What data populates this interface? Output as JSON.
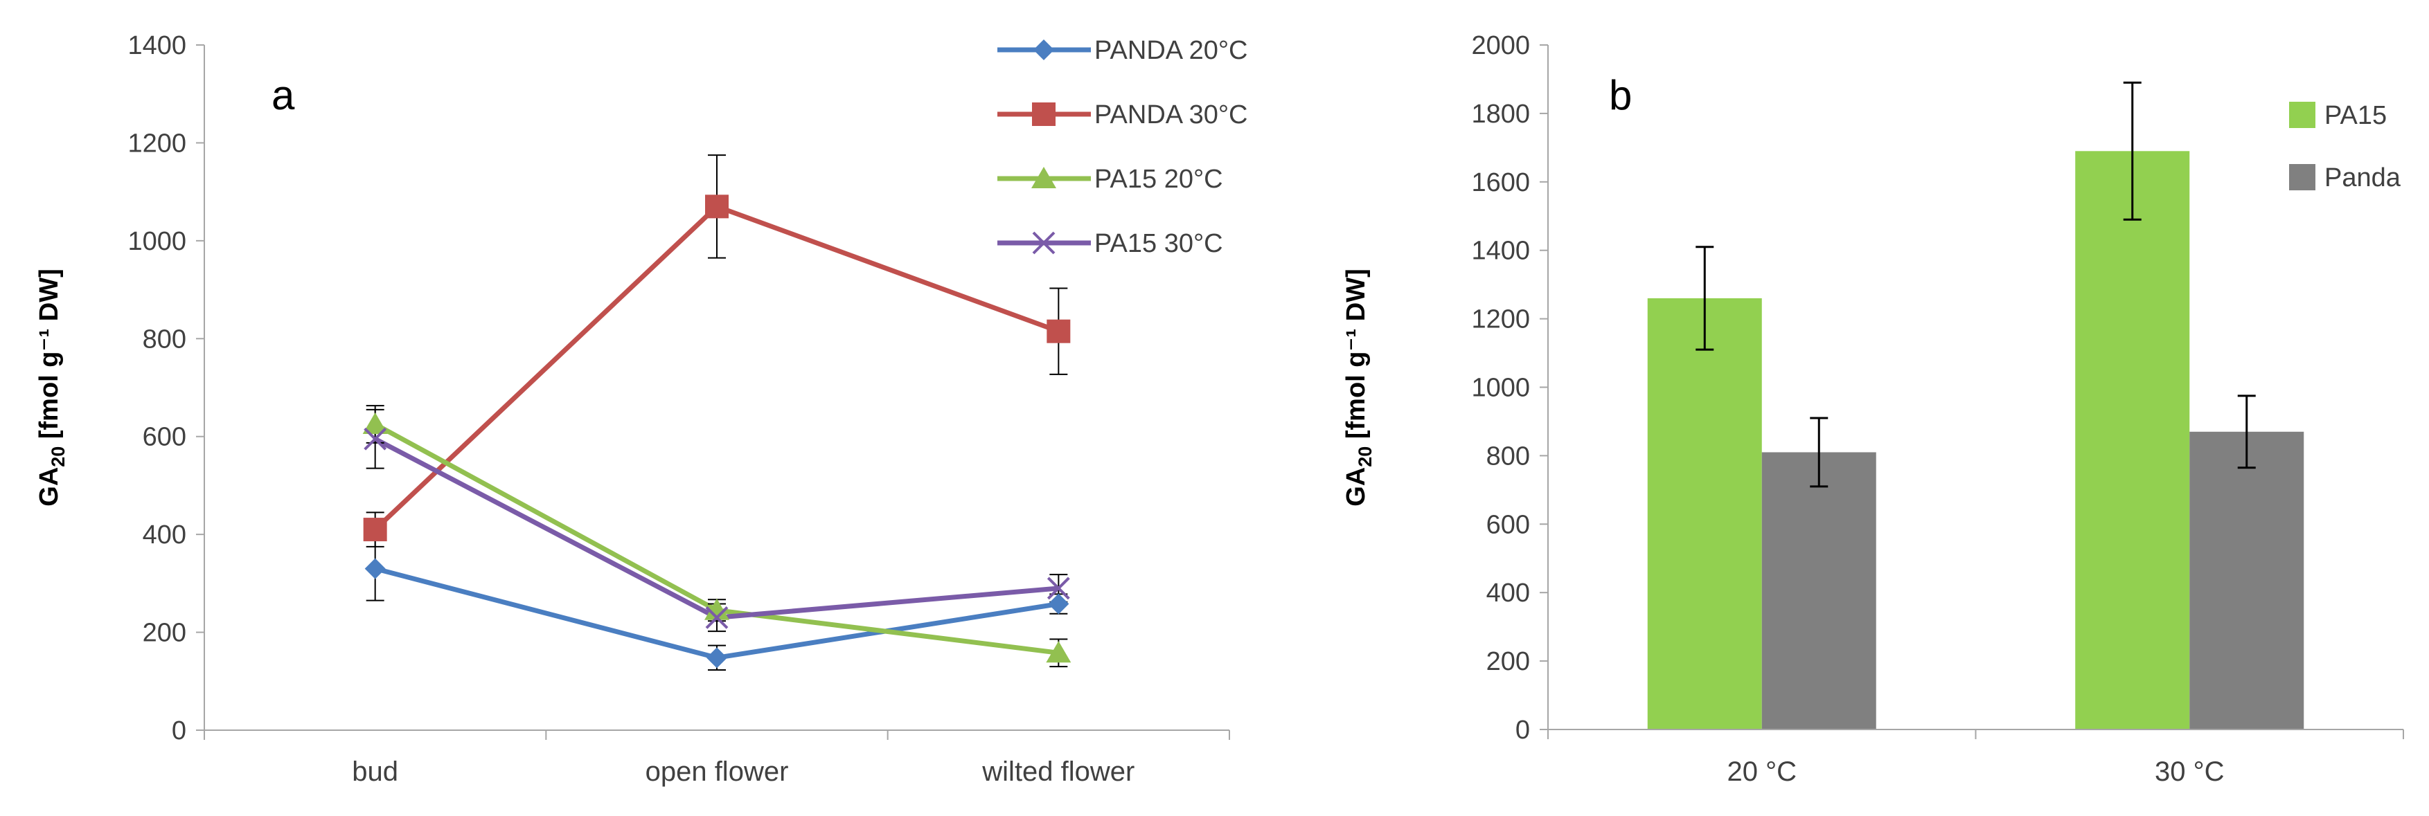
{
  "chart_data": [
    {
      "panel": "a",
      "type": "line",
      "label": "a",
      "ylabel": "GA",
      "ylabel_sub": "20",
      "ylabel_rest": " [fmol g⁻¹ DW]",
      "ylim": [
        0,
        1400
      ],
      "yticks": [
        0,
        200,
        400,
        600,
        800,
        1000,
        1200,
        1400
      ],
      "categories": [
        "bud",
        "open flower",
        "wilted flower"
      ],
      "series": [
        {
          "name": "PANDA 20°C",
          "color": "#4a7ec1",
          "marker": "diamond",
          "values": [
            330,
            148,
            258
          ],
          "errors": [
            65,
            25,
            20
          ]
        },
        {
          "name": "PANDA 30°C",
          "color": "#c0504d",
          "marker": "square",
          "values": [
            410,
            1070,
            815
          ],
          "errors": [
            35,
            105,
            88
          ]
        },
        {
          "name": "PA15 20°C",
          "color": "#92c050",
          "marker": "triangle",
          "values": [
            625,
            245,
            158
          ],
          "errors": [
            38,
            22,
            28
          ]
        },
        {
          "name": "PA15 30°C",
          "color": "#7a5ba8",
          "marker": "x",
          "values": [
            595,
            230,
            290
          ],
          "errors": [
            60,
            28,
            28
          ]
        }
      ]
    },
    {
      "panel": "b",
      "type": "bar",
      "label": "b",
      "ylabel": "GA",
      "ylabel_sub": "20",
      "ylabel_rest": " [fmol g⁻¹ DW]",
      "ylim": [
        0,
        2000
      ],
      "yticks": [
        0,
        200,
        400,
        600,
        800,
        1000,
        1200,
        1400,
        1600,
        1800,
        2000
      ],
      "categories": [
        "20 °C",
        "30 °C"
      ],
      "series": [
        {
          "name": "PA15",
          "color": "#92d050",
          "values": [
            1260,
            1690
          ],
          "errors": [
            150,
            200
          ]
        },
        {
          "name": "Panda",
          "color": "#808080",
          "values": [
            810,
            870
          ],
          "errors": [
            100,
            105
          ]
        }
      ]
    }
  ]
}
